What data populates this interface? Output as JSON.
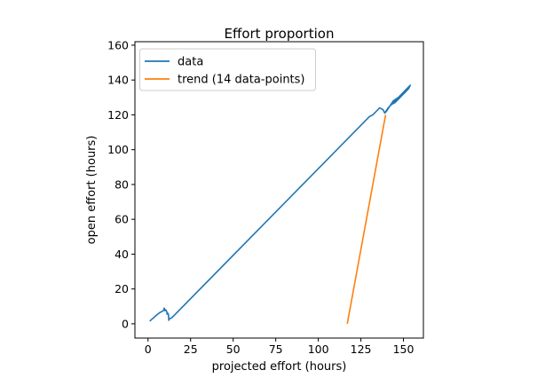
{
  "chart_data": {
    "type": "line",
    "title": "Effort proportion",
    "xlabel": "projected effort (hours)",
    "ylabel": "open effort (hours)",
    "xlim": [
      -7.7,
      161.7
    ],
    "ylim": [
      -8.2,
      162
    ],
    "xticks": [
      0,
      25,
      50,
      75,
      100,
      125,
      150
    ],
    "yticks": [
      0,
      20,
      40,
      60,
      80,
      100,
      120,
      140,
      160
    ],
    "grid": false,
    "legend_position": "upper left",
    "series": [
      {
        "name": "data",
        "color": "#1f77b4",
        "x": [
          1,
          5,
          7,
          8,
          9,
          9.5,
          10,
          10.5,
          11,
          11.2,
          11.5,
          11.8,
          12,
          12.2,
          12.5,
          13,
          14,
          127,
          128,
          130,
          132,
          134,
          136,
          138,
          139,
          140,
          141,
          143,
          145,
          147,
          149,
          151,
          152,
          153,
          154,
          153,
          150,
          147,
          144,
          142,
          140,
          139,
          141,
          144,
          147,
          150,
          152,
          154
        ],
        "y": [
          1.5,
          5,
          6.5,
          7,
          7.5,
          9,
          7.5,
          8,
          7,
          5.5,
          6,
          6,
          5,
          2,
          3,
          3,
          3.5,
          116,
          117,
          119,
          120,
          122,
          124,
          123,
          121,
          122,
          124,
          126,
          127,
          129,
          131,
          133,
          134,
          136,
          137,
          135,
          132,
          130,
          128,
          125,
          122,
          121,
          124,
          127,
          130,
          133,
          135,
          137
        ]
      },
      {
        "name": "trend (14 data-points)",
        "color": "#ff7f0e",
        "x": [
          117,
          139.5
        ],
        "y": [
          0,
          120
        ]
      }
    ]
  }
}
